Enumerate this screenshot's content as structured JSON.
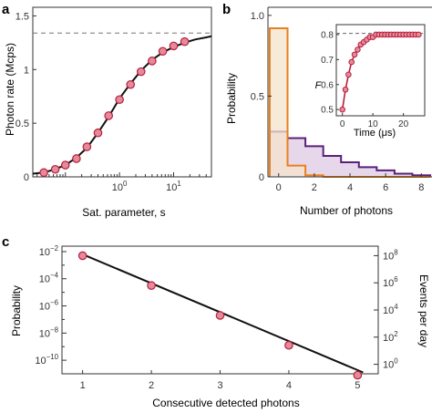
{
  "chart_data": [
    {
      "panel": "a",
      "type": "scatter",
      "xlabel": "Sat. parameter, s",
      "ylabel": "Photon rate (Mcps)",
      "xscale": "log",
      "xlim": [
        0.025,
        50
      ],
      "ylim": [
        0,
        1.58
      ],
      "xtick_values": [
        1,
        10
      ],
      "xtick_labels": [
        "10^0",
        "10^1"
      ],
      "ytick_values": [
        0,
        0.5,
        1,
        1.5
      ],
      "ytick_labels": [
        "0",
        "0.5",
        "1",
        "1.5"
      ],
      "asymptote": 1.34,
      "series": [
        {
          "role": "points",
          "x": [
            0.04,
            0.065,
            0.1,
            0.16,
            0.25,
            0.4,
            0.63,
            1.0,
            1.6,
            2.5,
            4.0,
            6.3,
            10,
            16
          ],
          "y": [
            0.04,
            0.07,
            0.11,
            0.17,
            0.28,
            0.41,
            0.57,
            0.72,
            0.86,
            0.98,
            1.08,
            1.17,
            1.22,
            1.26
          ]
        },
        {
          "role": "fit",
          "x": [
            0.025,
            0.04,
            0.063,
            0.1,
            0.16,
            0.25,
            0.4,
            0.63,
            1.0,
            1.6,
            2.5,
            4.0,
            6.3,
            10,
            16,
            25,
            40,
            50
          ],
          "y": [
            0.03,
            0.04,
            0.07,
            0.11,
            0.18,
            0.27,
            0.41,
            0.56,
            0.73,
            0.87,
            0.99,
            1.09,
            1.16,
            1.21,
            1.25,
            1.28,
            1.3,
            1.31
          ]
        }
      ]
    },
    {
      "panel": "b",
      "type": "bar",
      "xlabel": "Number of photons",
      "ylabel": "Probability",
      "xlim": [
        -0.6,
        8.6
      ],
      "ylim": [
        0,
        1.05
      ],
      "xtick_values": [
        0,
        2,
        4,
        6,
        8
      ],
      "xtick_labels": [
        "0",
        "2",
        "4",
        "6",
        "8"
      ],
      "ytick_values": [
        0,
        0.5,
        1.0
      ],
      "ytick_labels": [
        "0",
        "0.5",
        "1.0"
      ],
      "series": [
        {
          "color": "#e8801e",
          "fill": "#f6e3cc",
          "bins_x": [
            0,
            1,
            2,
            3,
            4,
            5,
            6,
            7,
            8
          ],
          "values": [
            0.92,
            0.07,
            0.01,
            0,
            0,
            0,
            0,
            0,
            0
          ]
        },
        {
          "color": "#5a2079",
          "fill": "#e6d8ea",
          "bins_x": [
            0,
            1,
            2,
            3,
            4,
            5,
            6,
            7,
            8
          ],
          "values": [
            0.28,
            0.24,
            0.19,
            0.13,
            0.09,
            0.06,
            0.04,
            0.02,
            0.01
          ]
        }
      ],
      "inset": {
        "type": "scatter",
        "xlabel": "Time (μs)",
        "ylabel": "F",
        "xlim": [
          -2,
          27
        ],
        "ylim": [
          0.475,
          0.84
        ],
        "xtick_values": [
          0,
          10,
          20
        ],
        "xtick_labels": [
          "0",
          "10",
          "20"
        ],
        "ytick_values": [
          0.5,
          0.6,
          0.7,
          0.8
        ],
        "ytick_labels": [
          "0.5",
          "0.6",
          "0.7",
          "0.8"
        ],
        "asymptote": 0.805,
        "x": [
          0,
          1,
          2,
          3,
          4,
          5,
          6,
          7,
          8,
          9,
          10,
          11,
          12,
          13,
          14,
          15,
          16,
          17,
          18,
          19,
          20,
          21,
          22,
          23,
          24,
          25
        ],
        "y": [
          0.5,
          0.58,
          0.64,
          0.69,
          0.72,
          0.74,
          0.76,
          0.77,
          0.78,
          0.79,
          0.79,
          0.8,
          0.8,
          0.8,
          0.8,
          0.8,
          0.8,
          0.8,
          0.8,
          0.8,
          0.8,
          0.8,
          0.8,
          0.8,
          0.8,
          0.8
        ]
      }
    },
    {
      "panel": "c",
      "type": "scatter",
      "xlabel": "Consecutive detected photons",
      "ylabel": "Probability",
      "y2label": "Events per day",
      "yscale": "log",
      "xlim": [
        0.7,
        5.3
      ],
      "ylim_exp": [
        -11.0,
        -1.6
      ],
      "xtick_values": [
        1,
        2,
        3,
        4,
        5
      ],
      "xtick_labels": [
        "1",
        "2",
        "3",
        "4",
        "5"
      ],
      "ytick_exp": [
        -2,
        -4,
        -6,
        -8,
        -10
      ],
      "y2tick_exp": [
        8,
        6,
        4,
        2,
        0
      ],
      "y2_offset_exp": 10.3,
      "x": [
        1,
        2,
        3,
        4,
        5
      ],
      "y_exp": [
        -2.3,
        -4.5,
        -6.7,
        -8.9,
        -11.1
      ],
      "fit_x": [
        1,
        5.08
      ],
      "fit_y_exp": [
        -2.2,
        -10.9
      ]
    }
  ]
}
